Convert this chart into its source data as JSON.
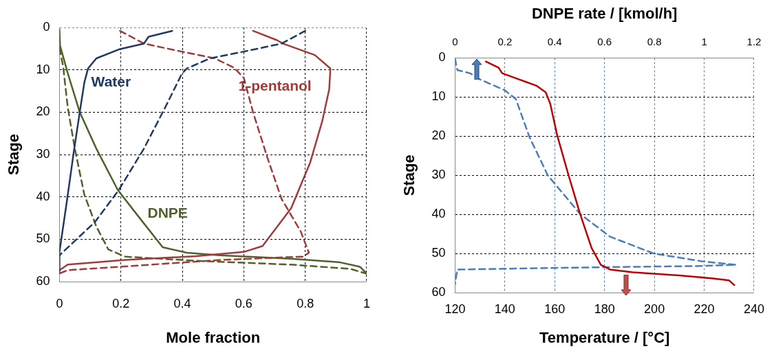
{
  "chart_data": [
    {
      "type": "line",
      "xlabel": "Mole fraction",
      "ylabel": "Stage",
      "xlim": [
        0,
        1
      ],
      "xticks": [
        0,
        0.2,
        0.4,
        0.6,
        0.8,
        1
      ],
      "ylim": [
        60,
        0
      ],
      "yticks": [
        0,
        10,
        20,
        30,
        40,
        50,
        60
      ],
      "grid": true,
      "marker": "none",
      "series": [
        {
          "name": "Water",
          "color": "#1f3a60",
          "line_style": "solid",
          "x": [
            0.367,
            0.29,
            0.275,
            0.197,
            0.12,
            0.093,
            0.081,
            0.066,
            0.046,
            0.023,
            0,
            0
          ],
          "values": [
            0.8,
            2.2,
            3.8,
            5.1,
            7.3,
            9.7,
            13,
            20,
            29.7,
            41.6,
            53,
            58
          ]
        },
        {
          "color": "#1f3a60",
          "line_style": "dashed",
          "x": [
            0.8,
            0.723,
            0.6,
            0.49,
            0.414,
            0.398,
            0.344,
            0.275,
            0.193,
            0.116,
            0
          ],
          "values": [
            0.8,
            3.8,
            5.7,
            7.3,
            9.7,
            11,
            18.9,
            28.6,
            38.4,
            45.9,
            53.8
          ]
        },
        {
          "name": "1-pentanol",
          "color": "#a33a3a",
          "line_style": "solid",
          "x": [
            0.63,
            0.708,
            0.727,
            0.831,
            0.882,
            0.878,
            0.855,
            0.816,
            0.754,
            0.661,
            0.6,
            0.445,
            0.213,
            0.027,
            0
          ],
          "values": [
            0.8,
            3,
            3.8,
            6.5,
            9.7,
            14.6,
            22.2,
            31.9,
            42.7,
            51.6,
            53,
            54,
            54.9,
            56,
            57.3
          ]
        },
        {
          "color": "#a33a3a",
          "line_style": "dashed",
          "x": [
            0.197,
            0.275,
            0.398,
            0.506,
            0.568,
            0.6,
            0.63,
            0.677,
            0.723,
            0.785,
            0.812,
            0.793,
            0.522,
            0.197,
            0.027,
            0
          ],
          "values": [
            0.8,
            3.8,
            5.7,
            7.3,
            9.5,
            11.9,
            20,
            30.8,
            40.5,
            48.1,
            53.2,
            54.1,
            54.9,
            56.5,
            57.3,
            58.1
          ]
        },
        {
          "name": "DNPE",
          "color": "#4f6228",
          "line_style": "solid",
          "x": [
            0,
            0.002,
            0.027,
            0.066,
            0.12,
            0.19,
            0.26,
            0.336,
            0.414,
            0.522,
            0.754,
            0.909,
            0.978,
            1
          ],
          "values": [
            0.5,
            4.3,
            10.8,
            20,
            28.6,
            38.4,
            44.9,
            51.9,
            53.2,
            53.8,
            54.6,
            55.4,
            56.5,
            58.1
          ]
        },
        {
          "color": "#4f6228",
          "line_style": "dashed",
          "x": [
            0,
            0.012,
            0.027,
            0.05,
            0.081,
            0.12,
            0.159,
            0.213,
            0.445,
            0.754,
            0.947,
            0.998
          ],
          "values": [
            4.9,
            9.2,
            18.9,
            28.6,
            39.5,
            47,
            52.4,
            54.1,
            55.1,
            56,
            57,
            58.1
          ]
        }
      ]
    },
    {
      "type": "line",
      "xlabel": "Temperature / [°C]",
      "x2label": "DNPE rate / [kmol/h]",
      "ylabel": "Stage",
      "xlim": [
        120,
        240
      ],
      "xticks": [
        120,
        140,
        160,
        180,
        200,
        220,
        240
      ],
      "x2lim": [
        0,
        1.2
      ],
      "x2ticks": [
        0,
        0.2,
        0.4,
        0.6,
        0.8,
        1,
        1.2
      ],
      "ylim": [
        60,
        0
      ],
      "yticks": [
        0,
        10,
        20,
        30,
        40,
        50,
        60
      ],
      "grid": true,
      "marker": "none",
      "series": [
        {
          "color": "#c00000",
          "line_style": "solid",
          "x": [
            132.4,
            137.5,
            138.9,
            145.3,
            152.7,
            156.4,
            158.2,
            161,
            165.6,
            170.2,
            174.8,
            178.5,
            182.2,
            191.4,
            209.8,
            223.6,
            230,
            232.1
          ],
          "values": [
            0.9,
            2.5,
            3.9,
            5.4,
            7.1,
            8.8,
            11.7,
            19.8,
            30.1,
            39.9,
            48.6,
            52.9,
            54.1,
            54.8,
            55.6,
            56.4,
            56.9,
            58.1
          ]
        },
        {
          "axis": "x2",
          "color": "#4a7ebb",
          "line_style": "dashed",
          "x": [
            0,
            0.009,
            0.06,
            0.097,
            0.198,
            0.244,
            0.299,
            0.373,
            0.502,
            0.622,
            0.797,
            0.99,
            1.128,
            0.99,
            0.604,
            0.009,
            0
          ],
          "values": [
            0.2,
            3.1,
            3.9,
            5.4,
            8.2,
            10.5,
            20.3,
            30.1,
            39.9,
            45.7,
            50,
            52,
            52.9,
            53.2,
            53.5,
            54.1,
            57.8
          ]
        }
      ]
    }
  ]
}
